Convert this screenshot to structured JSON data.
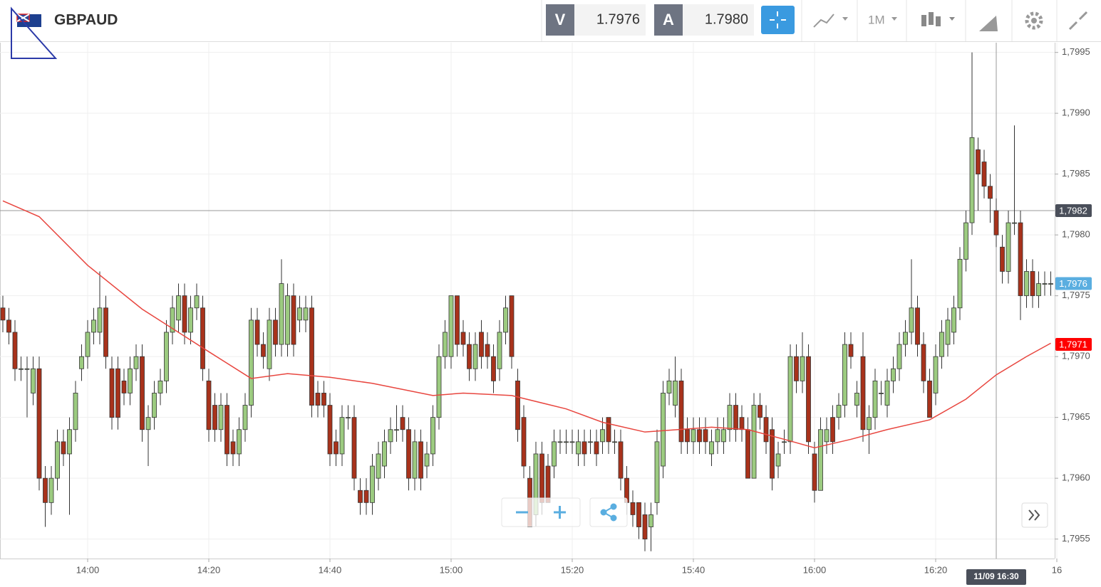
{
  "header": {
    "symbol": "GBPAUD",
    "bid_label": "V",
    "bid": "1.7976",
    "ask_label": "A",
    "ask": "1.7980",
    "timeframe": "1M"
  },
  "chart_data": {
    "type": "candlestick",
    "x": [
      "13:46",
      "13:47",
      "13:48",
      "13:49",
      "13:50",
      "13:51",
      "13:52",
      "13:53",
      "13:54",
      "13:55",
      "13:56",
      "13:57",
      "13:58",
      "13:59",
      "14:00",
      "14:01",
      "14:02",
      "14:03",
      "14:04",
      "14:05",
      "14:06",
      "14:07",
      "14:08",
      "14:09",
      "14:10",
      "14:11",
      "14:12",
      "14:13",
      "14:14",
      "14:15",
      "14:16",
      "14:17",
      "14:18",
      "14:19",
      "14:20",
      "14:21",
      "14:22",
      "14:23",
      "14:24",
      "14:25",
      "14:26",
      "14:27",
      "14:28",
      "14:29",
      "14:30",
      "14:31",
      "14:32",
      "14:33",
      "14:34",
      "14:35",
      "14:36",
      "14:37",
      "14:38",
      "14:39",
      "14:40",
      "14:41",
      "14:42",
      "14:43",
      "14:44",
      "14:45",
      "14:46",
      "14:47",
      "14:48",
      "14:49",
      "14:50",
      "14:51",
      "14:52",
      "14:53",
      "14:54",
      "14:55",
      "14:56",
      "14:57",
      "14:58",
      "14:59",
      "15:00",
      "15:01",
      "15:02",
      "15:03",
      "15:04",
      "15:05",
      "15:06",
      "15:07",
      "15:08",
      "15:09",
      "15:10",
      "15:11",
      "15:12",
      "15:13",
      "15:14",
      "15:15",
      "15:16",
      "15:17",
      "15:18",
      "15:19",
      "15:20",
      "15:21",
      "15:22",
      "15:23",
      "15:24",
      "15:25",
      "15:26",
      "15:27",
      "15:28",
      "15:29",
      "15:30",
      "15:31",
      "15:32",
      "15:33",
      "15:34",
      "15:35",
      "15:36",
      "15:37",
      "15:38",
      "15:39",
      "15:40",
      "15:41",
      "15:42",
      "15:43",
      "15:44",
      "15:45",
      "15:46",
      "15:47",
      "15:48",
      "15:49",
      "15:50",
      "15:51",
      "15:52",
      "15:53",
      "15:54",
      "15:55",
      "15:56",
      "15:57",
      "15:58",
      "15:59",
      "16:00",
      "16:01",
      "16:02",
      "16:03",
      "16:04",
      "16:05",
      "16:06",
      "16:07",
      "16:08",
      "16:09",
      "16:10",
      "16:11",
      "16:12",
      "16:13",
      "16:14",
      "16:15",
      "16:16",
      "16:17",
      "16:18",
      "16:19",
      "16:20",
      "16:21",
      "16:22",
      "16:23",
      "16:24",
      "16:25",
      "16:26",
      "16:27",
      "16:28",
      "16:29",
      "16:30",
      "16:31",
      "16:32",
      "16:33",
      "16:34",
      "16:35",
      "16:36",
      "16:37",
      "16:38",
      "16:39"
    ],
    "open": [
      1.7974,
      1.7973,
      1.7972,
      1.7969,
      1.7969,
      1.7967,
      1.7969,
      1.796,
      1.7958,
      1.796,
      1.7963,
      1.7962,
      1.7964,
      1.7969,
      1.797,
      1.7972,
      1.7972,
      1.7974,
      1.7969,
      1.7969,
      1.7968,
      1.7967,
      1.7969,
      1.797,
      1.7964,
      1.7965,
      1.7967,
      1.7968,
      1.7972,
      1.7973,
      1.7975,
      1.7972,
      1.7974,
      1.7974,
      1.7968,
      1.7966,
      1.7964,
      1.7966,
      1.7963,
      1.7962,
      1.7964,
      1.7966,
      1.7973,
      1.7971,
      1.7969,
      1.7973,
      1.7971,
      1.7971,
      1.7975,
      1.7973,
      1.7973,
      1.7974,
      1.7967,
      1.7967,
      1.7966,
      1.7963,
      1.7962,
      1.7965,
      1.7965,
      1.7959,
      1.7959,
      1.7958,
      1.796,
      1.7961,
      1.7963,
      1.7964,
      1.7965,
      1.7964,
      1.796,
      1.7963,
      1.7961,
      1.7962,
      1.7965,
      1.797,
      1.797,
      1.7975,
      1.7972,
      1.7971,
      1.7969,
      1.7972,
      1.7971,
      1.797,
      1.7969,
      1.7972,
      1.7975,
      1.7968,
      1.7965,
      1.796,
      1.7957,
      1.7962,
      1.7961,
      1.7961,
      1.7963,
      1.7963,
      1.7963,
      1.7962,
      1.7963,
      1.7963,
      1.7963,
      1.7963,
      1.7965,
      1.7963,
      1.7963,
      1.796,
      1.7958,
      1.7958,
      1.7957,
      1.7956,
      1.7958,
      1.7961,
      1.7967,
      1.7966,
      1.7968,
      1.7964,
      1.7963,
      1.7964,
      1.7964,
      1.7962,
      1.7963,
      1.7963,
      1.7964,
      1.7966,
      1.7965,
      1.7964,
      1.796,
      1.7966,
      1.7965,
      1.7964,
      1.7961,
      1.7963,
      1.7963,
      1.797,
      1.7968,
      1.797,
      1.7962,
      1.7959,
      1.7963,
      1.7965,
      1.7965,
      1.7966,
      1.7971,
      1.7966,
      1.797,
      1.7964,
      1.7965,
      1.7967,
      1.7966,
      1.7968,
      1.7969,
      1.7971,
      1.7972,
      1.7974,
      1.7971,
      1.7968,
      1.7967,
      1.797,
      1.7971,
      1.7972,
      1.7974,
      1.7978,
      1.7981,
      1.7987,
      1.7986,
      1.7984,
      1.7982,
      1.7979,
      1.7977,
      1.7981,
      1.7981,
      1.7975,
      1.7977,
      1.7975,
      1.7976,
      1.7976
    ],
    "high": [
      1.7975,
      1.7974,
      1.7973,
      1.797,
      1.797,
      1.797,
      1.797,
      1.7961,
      1.7961,
      1.7964,
      1.7964,
      1.7965,
      1.7968,
      1.7971,
      1.7973,
      1.7974,
      1.7977,
      1.7975,
      1.797,
      1.797,
      1.7969,
      1.797,
      1.7971,
      1.7971,
      1.7966,
      1.7968,
      1.7969,
      1.7973,
      1.7975,
      1.7976,
      1.7976,
      1.7975,
      1.7976,
      1.7975,
      1.7969,
      1.7967,
      1.7967,
      1.7967,
      1.7964,
      1.7965,
      1.7967,
      1.7974,
      1.7974,
      1.7972,
      1.7974,
      1.7974,
      1.7978,
      1.7976,
      1.7976,
      1.7975,
      1.7975,
      1.7975,
      1.7968,
      1.7968,
      1.7967,
      1.7964,
      1.7966,
      1.7966,
      1.7966,
      1.796,
      1.796,
      1.7962,
      1.7963,
      1.7964,
      1.7965,
      1.7966,
      1.7966,
      1.7965,
      1.7964,
      1.7964,
      1.7963,
      1.7966,
      1.7971,
      1.7973,
      1.7975,
      1.7975,
      1.7973,
      1.7972,
      1.7972,
      1.7973,
      1.7972,
      1.7971,
      1.7973,
      1.7975,
      1.7975,
      1.7969,
      1.7966,
      1.7961,
      1.7963,
      1.7963,
      1.7962,
      1.7964,
      1.7964,
      1.7964,
      1.7964,
      1.7964,
      1.7964,
      1.7964,
      1.7964,
      1.7965,
      1.7965,
      1.7964,
      1.7964,
      1.7961,
      1.7959,
      1.7958,
      1.7958,
      1.7958,
      1.7964,
      1.7968,
      1.7969,
      1.797,
      1.7969,
      1.7965,
      1.7965,
      1.7965,
      1.7965,
      1.7964,
      1.7965,
      1.7965,
      1.7967,
      1.7967,
      1.7966,
      1.7965,
      1.7967,
      1.7967,
      1.7966,
      1.7965,
      1.7963,
      1.7964,
      1.7971,
      1.7971,
      1.7972,
      1.7971,
      1.7963,
      1.7965,
      1.7965,
      1.7966,
      1.7967,
      1.7972,
      1.7972,
      1.7968,
      1.7972,
      1.7966,
      1.7969,
      1.7968,
      1.7969,
      1.797,
      1.7972,
      1.7973,
      1.7978,
      1.7975,
      1.7972,
      1.7969,
      1.7971,
      1.7973,
      1.7974,
      1.7975,
      1.7979,
      1.7982,
      1.7995,
      1.7988,
      1.7987,
      1.7985,
      1.7983,
      1.798,
      1.7982,
      1.7989,
      1.7982,
      1.7978,
      1.7978,
      1.7977,
      1.7977,
      1.7977
    ],
    "low": [
      1.7972,
      1.7971,
      1.7968,
      1.7968,
      1.7965,
      1.7966,
      1.7959,
      1.7956,
      1.7957,
      1.7959,
      1.7961,
      1.7957,
      1.7963,
      1.7968,
      1.7969,
      1.7971,
      1.7971,
      1.7969,
      1.7964,
      1.7964,
      1.7966,
      1.7966,
      1.7968,
      1.7963,
      1.7961,
      1.7964,
      1.7966,
      1.7967,
      1.7971,
      1.7972,
      1.7971,
      1.7971,
      1.7973,
      1.7968,
      1.7963,
      1.7963,
      1.7963,
      1.7961,
      1.7961,
      1.7961,
      1.7963,
      1.7965,
      1.797,
      1.7969,
      1.7968,
      1.797,
      1.797,
      1.797,
      1.797,
      1.7972,
      1.7972,
      1.7965,
      1.7965,
      1.7965,
      1.7961,
      1.7961,
      1.7961,
      1.7964,
      1.7959,
      1.7957,
      1.7957,
      1.7957,
      1.7959,
      1.796,
      1.7962,
      1.7963,
      1.7963,
      1.7959,
      1.7959,
      1.7959,
      1.796,
      1.7961,
      1.7964,
      1.7969,
      1.7969,
      1.797,
      1.797,
      1.7968,
      1.7968,
      1.7969,
      1.7969,
      1.7967,
      1.7968,
      1.7971,
      1.7969,
      1.7963,
      1.796,
      1.7956,
      1.7956,
      1.7957,
      1.7958,
      1.796,
      1.7962,
      1.7962,
      1.7962,
      1.7961,
      1.7961,
      1.7962,
      1.7961,
      1.7962,
      1.7962,
      1.7962,
      1.7959,
      1.7957,
      1.7956,
      1.7955,
      1.7954,
      1.7954,
      1.7957,
      1.796,
      1.7966,
      1.7965,
      1.7962,
      1.7962,
      1.7962,
      1.7962,
      1.7962,
      1.7961,
      1.7962,
      1.7962,
      1.7963,
      1.7963,
      1.7963,
      1.796,
      1.796,
      1.7964,
      1.7962,
      1.7959,
      1.796,
      1.7962,
      1.7962,
      1.7967,
      1.7967,
      1.7962,
      1.7958,
      1.7959,
      1.7962,
      1.7962,
      1.7964,
      1.7965,
      1.7969,
      1.7965,
      1.7963,
      1.7962,
      1.7964,
      1.7966,
      1.7965,
      1.7967,
      1.7968,
      1.797,
      1.7971,
      1.797,
      1.7967,
      1.7965,
      1.7966,
      1.7969,
      1.797,
      1.7971,
      1.7973,
      1.7977,
      1.798,
      1.7982,
      1.7983,
      1.7981,
      1.7979,
      1.7976,
      1.7976,
      1.798,
      1.7973,
      1.7974,
      1.7974,
      1.7974,
      1.7975,
      1.7975
    ],
    "close": [
      1.7973,
      1.7972,
      1.7969,
      1.7969,
      1.7969,
      1.7969,
      1.796,
      1.7958,
      1.796,
      1.7963,
      1.7962,
      1.7964,
      1.7967,
      1.797,
      1.7972,
      1.7973,
      1.7974,
      1.797,
      1.7965,
      1.7965,
      1.7967,
      1.7969,
      1.797,
      1.7964,
      1.7965,
      1.7967,
      1.7968,
      1.7972,
      1.7974,
      1.7975,
      1.7972,
      1.7974,
      1.7975,
      1.7969,
      1.7964,
      1.7964,
      1.7966,
      1.7962,
      1.7962,
      1.7964,
      1.7966,
      1.7973,
      1.7971,
      1.797,
      1.7973,
      1.7971,
      1.7976,
      1.7975,
      1.7971,
      1.7974,
      1.7974,
      1.7966,
      1.7966,
      1.7966,
      1.7962,
      1.7962,
      1.7965,
      1.7965,
      1.796,
      1.7958,
      1.7958,
      1.7961,
      1.7962,
      1.7963,
      1.7964,
      1.7964,
      1.7964,
      1.796,
      1.7963,
      1.796,
      1.7962,
      1.7965,
      1.797,
      1.7972,
      1.7975,
      1.7971,
      1.7971,
      1.7969,
      1.7971,
      1.797,
      1.797,
      1.7968,
      1.7972,
      1.7974,
      1.797,
      1.7964,
      1.7961,
      1.7956,
      1.7962,
      1.7958,
      1.7958,
      1.7963,
      1.7963,
      1.7963,
      1.7963,
      1.7963,
      1.7962,
      1.7963,
      1.7962,
      1.7964,
      1.7963,
      1.7963,
      1.796,
      1.7958,
      1.7957,
      1.7956,
      1.7955,
      1.7957,
      1.7963,
      1.7967,
      1.7968,
      1.7968,
      1.7963,
      1.7963,
      1.7964,
      1.7963,
      1.7963,
      1.7963,
      1.7964,
      1.7964,
      1.7966,
      1.7964,
      1.7964,
      1.796,
      1.7966,
      1.7965,
      1.7963,
      1.796,
      1.7962,
      1.7963,
      1.797,
      1.7968,
      1.797,
      1.7963,
      1.7959,
      1.7964,
      1.7964,
      1.7963,
      1.7966,
      1.7971,
      1.797,
      1.7967,
      1.7964,
      1.7965,
      1.7968,
      1.7967,
      1.7968,
      1.7969,
      1.7971,
      1.7972,
      1.7974,
      1.7971,
      1.7968,
      1.7965,
      1.797,
      1.7972,
      1.7973,
      1.7974,
      1.7978,
      1.7981,
      1.7988,
      1.7985,
      1.7984,
      1.7983,
      1.798,
      1.7977,
      1.7981,
      1.7981,
      1.7975,
      1.7977,
      1.7975,
      1.7976,
      1.7976,
      1.7976
    ],
    "up_color": "#9ccb80",
    "down_color": "#a8321b",
    "ma": {
      "color": "#e8463f",
      "x": [
        "13:46",
        "13:52",
        "14:00",
        "14:09",
        "14:20",
        "14:27",
        "14:33",
        "14:40",
        "14:47",
        "14:57",
        "15:02",
        "15:10",
        "15:19",
        "15:25",
        "15:32",
        "15:43",
        "15:49",
        "15:55",
        "16:00",
        "16:06",
        "16:12",
        "16:19",
        "16:25",
        "16:30",
        "16:35",
        "16:39"
      ],
      "values": [
        1.79828,
        1.79815,
        1.79775,
        1.79739,
        1.79704,
        1.79682,
        1.79686,
        1.79683,
        1.79678,
        1.79668,
        1.7967,
        1.79668,
        1.79657,
        1.79646,
        1.79638,
        1.79642,
        1.7964,
        1.79632,
        1.79625,
        1.79632,
        1.7964,
        1.79648,
        1.79665,
        1.79685,
        1.797,
        1.79711
      ]
    },
    "ylim": [
      1.79534,
      1.79958
    ],
    "yticks": [
      {
        "value": 1.7955,
        "label": "1,7955"
      },
      {
        "value": 1.796,
        "label": "1,7960"
      },
      {
        "value": 1.7965,
        "label": "1,7965"
      },
      {
        "value": 1.797,
        "label": "1,7970"
      },
      {
        "value": 1.7975,
        "label": "1,7975"
      },
      {
        "value": 1.798,
        "label": "1,7980"
      },
      {
        "value": 1.7985,
        "label": "1,7985"
      },
      {
        "value": 1.799,
        "label": "1,7990"
      },
      {
        "value": 1.7995,
        "label": "1,7995"
      }
    ],
    "xticks": [
      "14:00",
      "14:20",
      "14:40",
      "15:00",
      "15:20",
      "15:40",
      "16:00",
      "16:20",
      {
        "value": "16:40",
        "label": "16"
      }
    ],
    "grid": true,
    "price_markers": [
      {
        "value": 1.7976,
        "label": "1,7976",
        "color": "#5aaee0"
      },
      {
        "value": 1.7971,
        "label": "1,7971",
        "color": "#ff0000"
      }
    ],
    "crosshair": {
      "value": 1.7982,
      "label": "1,7982",
      "time": "16:30",
      "time_label": "11/09 16:30",
      "color": "#4a4f5a"
    }
  }
}
